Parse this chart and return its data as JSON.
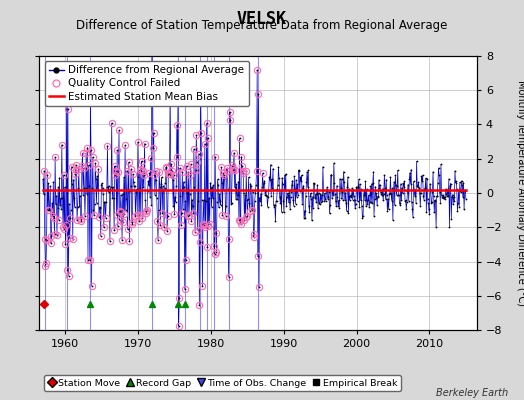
{
  "title": "VELSK",
  "subtitle": "Difference of Station Temperature Data from Regional Average",
  "ylabel_right": "Monthly Temperature Anomaly Difference (°C)",
  "watermark": "Berkeley Earth",
  "xlim": [
    1956.5,
    2016.5
  ],
  "ylim": [
    -8,
    8
  ],
  "yticks": [
    -8,
    -6,
    -4,
    -2,
    0,
    2,
    4,
    6,
    8
  ],
  "xticks": [
    1960,
    1970,
    1980,
    1990,
    2000,
    2010
  ],
  "bias_value": 0.15,
  "background_color": "#d8d8d8",
  "plot_bg_color": "#ffffff",
  "grid_color": "#bbbbbb",
  "line_color": "#0000cc",
  "dot_color": "#000000",
  "qc_color": "#ff69b4",
  "bias_color": "#ff0000",
  "time_obs_color": "#4444ff",
  "record_gap_color": "#008800",
  "station_move_color": "#dd0000",
  "empirical_break_color": "#000000",
  "title_fontsize": 12,
  "subtitle_fontsize": 8.5,
  "tick_fontsize": 8,
  "legend_fontsize": 7.5,
  "station_moves": [
    1957.2
  ],
  "record_gaps": [
    1963.5,
    1972.0,
    1975.5,
    1976.5
  ],
  "time_obs_changes": [
    1957.3,
    1960.3,
    1963.5,
    1972.0,
    1975.5,
    1976.5,
    1978.5,
    1979.5,
    1980.5,
    1982.5,
    1986.5
  ],
  "empirical_breaks": [],
  "seed": 77,
  "years_start": 1957,
  "years_end": 2015
}
